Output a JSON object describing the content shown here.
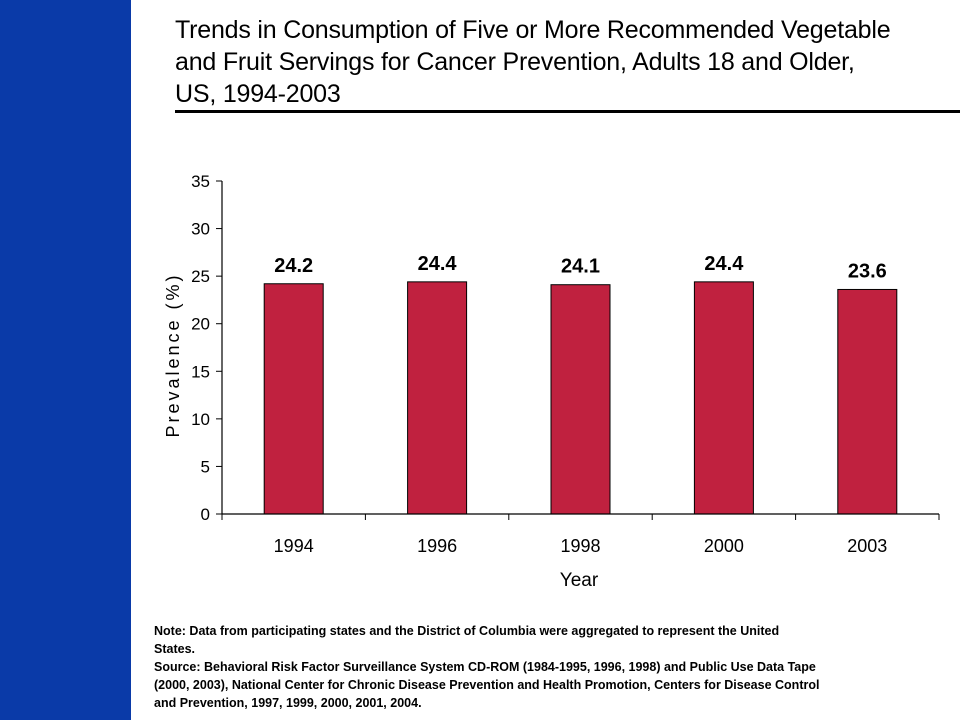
{
  "slide": {
    "title": "Trends in Consumption of Five or More Recommended Vegetable\nand Fruit Servings for Cancer Prevention, Adults 18 and Older,\nUS, 1994-2003",
    "note": "Note: Data from participating states and the District of Columbia were aggregated to represent the United\nStates.\nSource: Behavioral Risk Factor Surveillance System CD-ROM (1984-1995, 1996, 1998) and Public Use Data Tape\n(2000, 2003), National Center for Chronic Disease Prevention and Health Promotion, Centers for Disease Control\nand Prevention, 1997, 1999, 2000, 2001, 2004.",
    "colors": {
      "side_bar": "#0a3aa8",
      "bar_fill": "#c0213f"
    }
  },
  "chart_data": {
    "type": "bar",
    "categories": [
      "1994",
      "1996",
      "1998",
      "2000",
      "2003"
    ],
    "values": [
      24.2,
      24.4,
      24.1,
      24.4,
      23.6
    ],
    "data_labels": [
      "24.2",
      "24.4",
      "24.1",
      "24.4",
      "23.6"
    ],
    "xlabel": "Year",
    "ylabel": "Prevalence (%)",
    "ylim": [
      0,
      35
    ],
    "yticks": [
      0,
      5,
      10,
      15,
      20,
      25,
      30,
      35
    ],
    "grid": false,
    "legend": "none"
  }
}
